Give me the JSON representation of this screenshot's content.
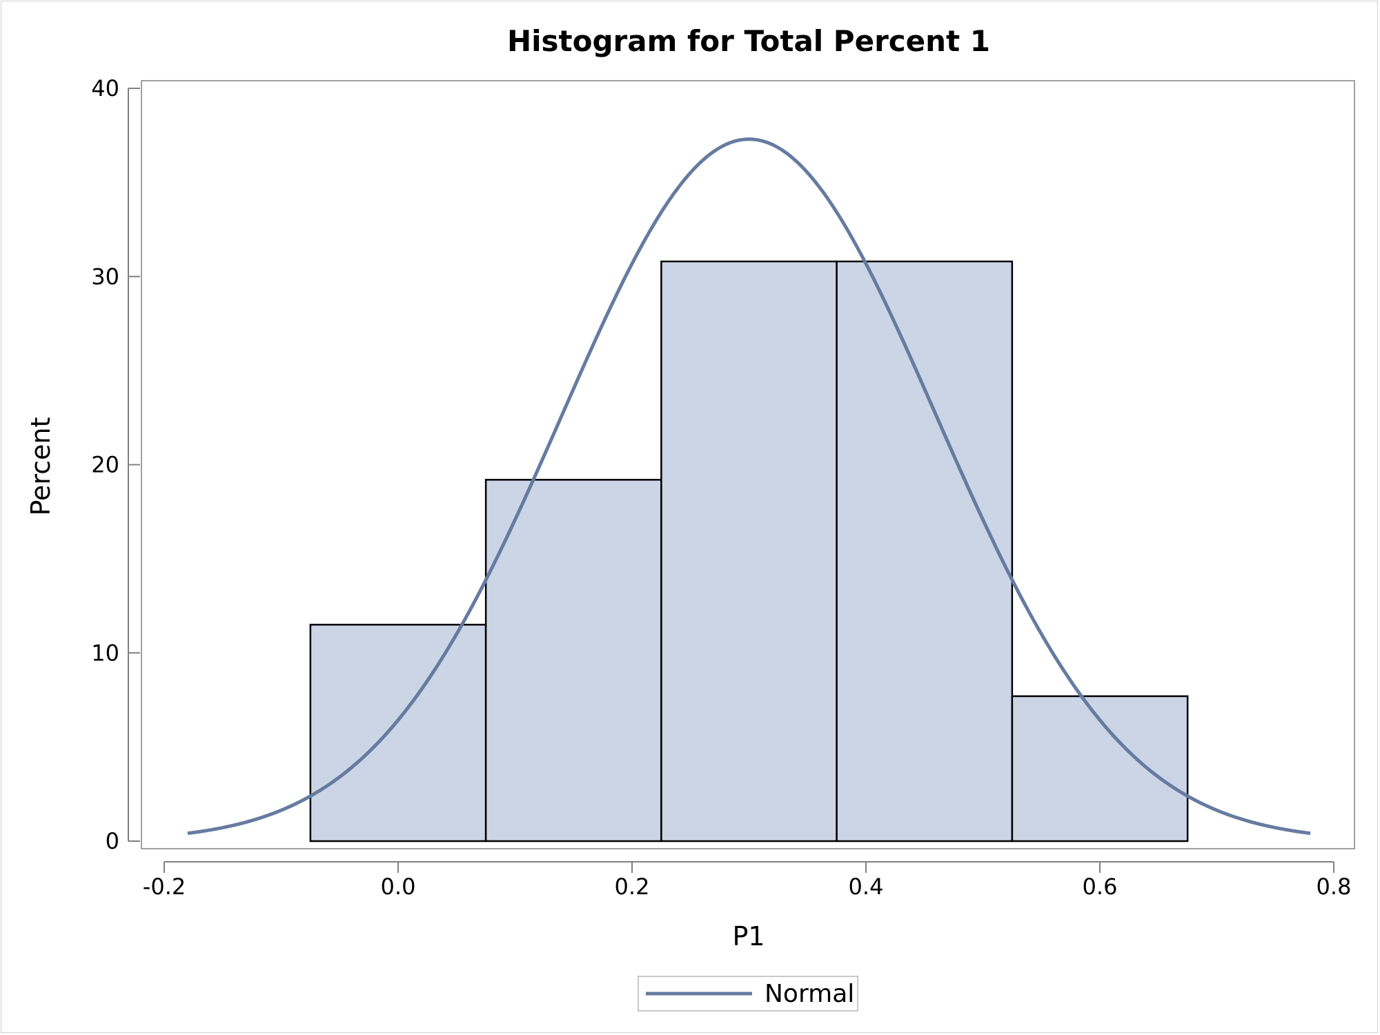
{
  "chart_data": {
    "type": "bar",
    "title": "Histogram for Total Percent 1",
    "xlabel": "P1",
    "ylabel": "Percent",
    "xlim": [
      -0.2,
      0.8
    ],
    "ylim": [
      0,
      40
    ],
    "xticks": [
      "-0.2",
      "0.0",
      "0.2",
      "0.4",
      "0.6",
      "0.8"
    ],
    "yticks": [
      "0",
      "10",
      "20",
      "30",
      "40"
    ],
    "bins": [
      {
        "x0": -0.075,
        "x1": 0.075,
        "value": 11.5
      },
      {
        "x0": 0.075,
        "x1": 0.225,
        "value": 19.2
      },
      {
        "x0": 0.225,
        "x1": 0.375,
        "value": 30.8
      },
      {
        "x0": 0.375,
        "x1": 0.525,
        "value": 30.8
      },
      {
        "x0": 0.525,
        "x1": 0.675,
        "value": 7.7
      }
    ],
    "curve": {
      "name": "Normal",
      "mean": 0.3,
      "std": 0.16,
      "peak": 37.3,
      "x_range": [
        -0.18,
        0.78
      ]
    },
    "grid": false,
    "legend": "bottom-center",
    "colors": {
      "bar_fill": "#cbd5e6",
      "bar_stroke": "#000000",
      "curve": "#667ba0",
      "axis": "#808080"
    }
  }
}
